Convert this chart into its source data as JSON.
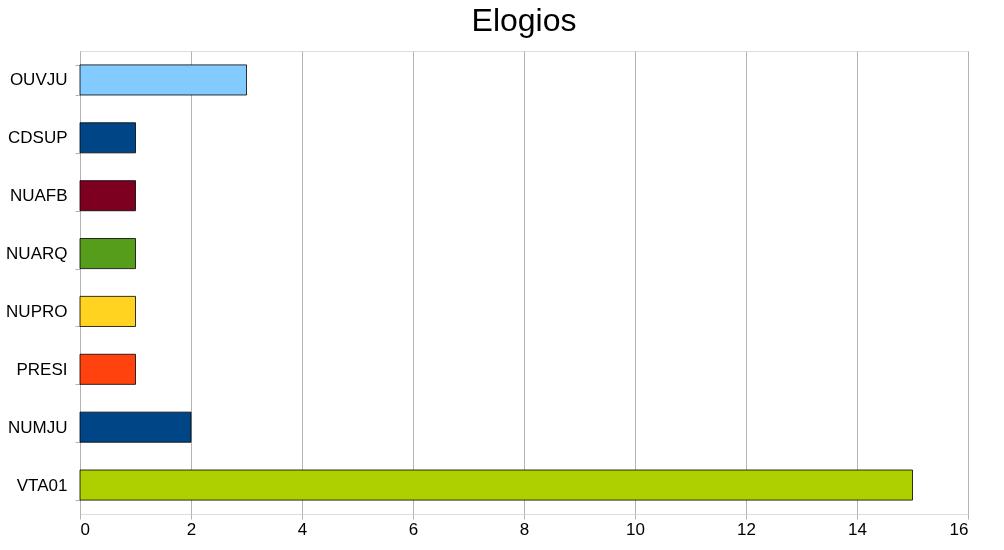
{
  "chart_data": {
    "type": "bar",
    "orientation": "horizontal",
    "title": "Elogios",
    "categories": [
      "OUVJU",
      "CDSUP",
      "NUAFB",
      "NUARQ",
      "NUPRO",
      "PRESI",
      "NUMJU",
      "VTA01"
    ],
    "values": [
      3,
      1,
      1,
      1,
      1,
      1,
      2,
      15
    ],
    "colors": [
      "#83caff",
      "#004586",
      "#7e0021",
      "#579d1c",
      "#ffd320",
      "#ff420e",
      "#004586",
      "#aecf00"
    ],
    "xlim": [
      0,
      16
    ],
    "xticks": [
      0,
      2,
      4,
      6,
      8,
      10,
      12,
      14,
      16
    ],
    "grid": "x"
  }
}
